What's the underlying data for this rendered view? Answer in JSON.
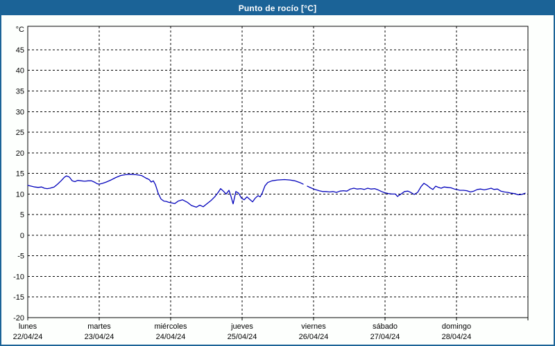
{
  "title_bar": {
    "title": "Punto de rocío [°C]"
  },
  "colors": {
    "accent_blue": "#1b6397",
    "line_blue": "#0000bb",
    "plot_background": "#ffffff",
    "grid_black": "#000000"
  },
  "chart_data": {
    "type": "line",
    "title": "Punto de rocío [°C]",
    "ylabel": "°C",
    "legend": "none",
    "grid": "dashed",
    "ylim": [
      -20,
      50.7
    ],
    "yticks": [
      45,
      40,
      35,
      30,
      25,
      20,
      15,
      10,
      5,
      0,
      -5,
      -10,
      -15,
      -20
    ],
    "x_axis": {
      "days": [
        {
          "name": "lunes",
          "date": "22/04/24"
        },
        {
          "name": "martes",
          "date": "23/04/24"
        },
        {
          "name": "miércoles",
          "date": "24/04/24"
        },
        {
          "name": "jueves",
          "date": "25/04/24"
        },
        {
          "name": "viernes",
          "date": "26/04/24"
        },
        {
          "name": "sábado",
          "date": "27/04/24"
        },
        {
          "name": "domingo",
          "date": "28/04/24"
        }
      ]
    },
    "series": [
      {
        "name": "Punto de rocío",
        "unit": "°C",
        "color": "#0000bb",
        "segments": [
          [
            [
              0.0,
              12.1
            ],
            [
              0.049,
              11.9
            ],
            [
              0.097,
              11.7
            ],
            [
              0.146,
              11.6
            ],
            [
              0.194,
              11.7
            ],
            [
              0.233,
              11.4
            ],
            [
              0.272,
              11.3
            ],
            [
              0.311,
              11.4
            ],
            [
              0.369,
              11.7
            ],
            [
              0.417,
              12.4
            ],
            [
              0.466,
              13.2
            ],
            [
              0.515,
              14.1
            ],
            [
              0.544,
              14.4
            ],
            [
              0.583,
              14.1
            ],
            [
              0.621,
              13.2
            ],
            [
              0.66,
              13.0
            ],
            [
              0.699,
              13.3
            ],
            [
              0.748,
              13.2
            ],
            [
              0.796,
              13.1
            ],
            [
              0.845,
              13.2
            ],
            [
              0.893,
              13.2
            ],
            [
              0.932,
              12.9
            ],
            [
              0.971,
              12.5
            ],
            [
              1.0,
              12.4
            ],
            [
              1.049,
              12.6
            ],
            [
              1.097,
              12.9
            ],
            [
              1.165,
              13.4
            ],
            [
              1.233,
              14.0
            ],
            [
              1.301,
              14.5
            ],
            [
              1.369,
              14.7
            ],
            [
              1.437,
              14.8
            ],
            [
              1.514,
              14.7
            ],
            [
              1.592,
              14.5
            ],
            [
              1.65,
              13.9
            ],
            [
              1.699,
              13.5
            ],
            [
              1.728,
              12.9
            ],
            [
              1.757,
              13.2
            ],
            [
              1.786,
              12.3
            ],
            [
              1.825,
              10.2
            ],
            [
              1.864,
              8.8
            ],
            [
              1.903,
              8.3
            ],
            [
              1.942,
              8.2
            ],
            [
              1.971,
              8.0
            ],
            [
              2.0,
              7.9
            ],
            [
              2.058,
              7.7
            ],
            [
              2.107,
              8.3
            ],
            [
              2.165,
              8.6
            ],
            [
              2.233,
              8.0
            ],
            [
              2.291,
              7.2
            ],
            [
              2.359,
              6.8
            ],
            [
              2.408,
              7.3
            ],
            [
              2.456,
              6.9
            ],
            [
              2.505,
              7.6
            ],
            [
              2.563,
              8.4
            ],
            [
              2.621,
              9.4
            ],
            [
              2.67,
              10.5
            ],
            [
              2.699,
              11.3
            ],
            [
              2.738,
              10.7
            ],
            [
              2.777,
              10.0
            ],
            [
              2.816,
              10.9
            ],
            [
              2.845,
              9.4
            ],
            [
              2.874,
              7.6
            ],
            [
              2.913,
              10.6
            ],
            [
              2.951,
              10.2
            ],
            [
              2.99,
              9.0
            ],
            [
              3.029,
              8.6
            ],
            [
              3.068,
              9.3
            ],
            [
              3.107,
              8.7
            ],
            [
              3.146,
              8.1
            ],
            [
              3.184,
              9.0
            ],
            [
              3.223,
              9.6
            ],
            [
              3.252,
              9.3
            ],
            [
              3.281,
              10.2
            ],
            [
              3.32,
              12.0
            ],
            [
              3.359,
              12.8
            ],
            [
              3.417,
              13.2
            ],
            [
              3.495,
              13.4
            ],
            [
              3.592,
              13.5
            ],
            [
              3.67,
              13.4
            ],
            [
              3.738,
              13.2
            ],
            [
              3.806,
              12.8
            ],
            [
              3.854,
              12.4
            ]
          ],
          [
            [
              3.913,
              11.9
            ],
            [
              3.961,
              11.5
            ],
            [
              4.0,
              11.2
            ],
            [
              4.039,
              11.0
            ],
            [
              4.078,
              10.8
            ],
            [
              4.126,
              10.6
            ],
            [
              4.175,
              10.6
            ],
            [
              4.223,
              10.5
            ],
            [
              4.272,
              10.6
            ],
            [
              4.32,
              10.4
            ],
            [
              4.369,
              10.7
            ],
            [
              4.417,
              10.8
            ],
            [
              4.466,
              10.7
            ],
            [
              4.515,
              11.2
            ],
            [
              4.563,
              11.4
            ],
            [
              4.612,
              11.2
            ],
            [
              4.66,
              11.3
            ],
            [
              4.709,
              11.1
            ],
            [
              4.757,
              11.4
            ],
            [
              4.806,
              11.2
            ],
            [
              4.854,
              11.3
            ],
            [
              4.903,
              11.0
            ],
            [
              4.951,
              10.6
            ],
            [
              5.0,
              10.3
            ],
            [
              5.049,
              10.1
            ],
            [
              5.097,
              10.0
            ],
            [
              5.146,
              10.0
            ],
            [
              5.175,
              9.4
            ],
            [
              5.223,
              10.0
            ],
            [
              5.272,
              10.6
            ],
            [
              5.32,
              10.7
            ],
            [
              5.359,
              10.4
            ],
            [
              5.408,
              9.9
            ],
            [
              5.456,
              10.4
            ],
            [
              5.505,
              11.8
            ],
            [
              5.544,
              12.6
            ],
            [
              5.583,
              12.2
            ],
            [
              5.631,
              11.5
            ],
            [
              5.67,
              11.1
            ],
            [
              5.709,
              11.9
            ],
            [
              5.748,
              11.6
            ],
            [
              5.786,
              11.4
            ],
            [
              5.825,
              11.7
            ],
            [
              5.874,
              11.6
            ],
            [
              5.922,
              11.5
            ],
            [
              5.971,
              11.2
            ],
            [
              6.0,
              11.1
            ],
            [
              6.049,
              10.9
            ],
            [
              6.097,
              10.9
            ],
            [
              6.146,
              10.8
            ],
            [
              6.194,
              10.5
            ],
            [
              6.243,
              10.7
            ],
            [
              6.291,
              11.1
            ],
            [
              6.34,
              11.2
            ],
            [
              6.388,
              11.0
            ],
            [
              6.437,
              11.2
            ],
            [
              6.485,
              11.4
            ],
            [
              6.524,
              11.1
            ],
            [
              6.573,
              11.2
            ],
            [
              6.621,
              10.7
            ],
            [
              6.67,
              10.5
            ],
            [
              6.718,
              10.4
            ],
            [
              6.767,
              10.2
            ],
            [
              6.816,
              10.1
            ],
            [
              6.864,
              9.8
            ],
            [
              6.913,
              9.9
            ],
            [
              6.961,
              10.2
            ]
          ]
        ]
      }
    ]
  }
}
